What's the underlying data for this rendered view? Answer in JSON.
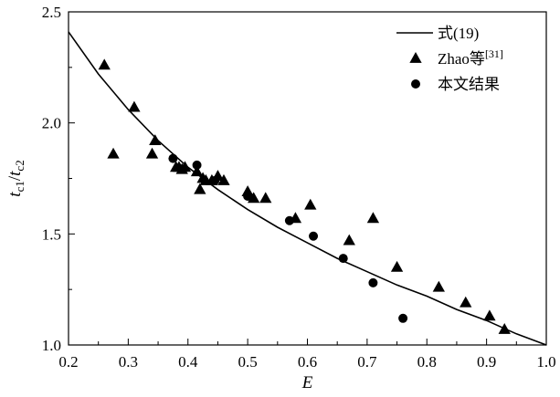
{
  "chart_data": {
    "type": "scatter",
    "xlabel": "E",
    "ylabel": {
      "t1": "t",
      "s1": "c1",
      "sep": "/",
      "t2": "t",
      "s2": "c2"
    },
    "xlim": [
      0.2,
      1.0
    ],
    "ylim": [
      1.0,
      2.5
    ],
    "x_ticks": [
      0.2,
      0.3,
      0.4,
      0.5,
      0.6,
      0.7,
      0.8,
      0.9,
      1.0
    ],
    "x_tick_labels": [
      "0.2",
      "0.3",
      "0.4",
      "0.5",
      "0.6",
      "0.7",
      "0.8",
      "0.9",
      "1.0"
    ],
    "y_ticks": [
      1.0,
      1.5,
      2.0,
      2.5
    ],
    "y_tick_labels": [
      "1.0",
      "1.5",
      "2.0",
      "2.5"
    ],
    "grid": false,
    "legend_position": "top-right",
    "series": [
      {
        "name": "式(19)",
        "type": "line",
        "color": "#000000",
        "x": [
          0.2,
          0.25,
          0.3,
          0.35,
          0.4,
          0.45,
          0.5,
          0.55,
          0.6,
          0.65,
          0.7,
          0.75,
          0.8,
          0.85,
          0.9,
          0.95,
          1.0
        ],
        "y": [
          2.41,
          2.22,
          2.06,
          1.92,
          1.8,
          1.7,
          1.61,
          1.53,
          1.46,
          1.39,
          1.33,
          1.27,
          1.22,
          1.16,
          1.11,
          1.05,
          1.0
        ]
      },
      {
        "name": "Zhao等",
        "name_sup": "[31]",
        "type": "scatter",
        "marker": "triangle",
        "color": "#000000",
        "x": [
          0.26,
          0.275,
          0.31,
          0.34,
          0.345,
          0.38,
          0.385,
          0.39,
          0.395,
          0.415,
          0.42,
          0.425,
          0.43,
          0.44,
          0.45,
          0.46,
          0.5,
          0.51,
          0.53,
          0.58,
          0.605,
          0.67,
          0.71,
          0.75,
          0.82,
          0.865,
          0.905,
          0.93
        ],
        "y": [
          2.26,
          1.86,
          2.07,
          1.86,
          1.92,
          1.8,
          1.8,
          1.79,
          1.8,
          1.78,
          1.7,
          1.75,
          1.74,
          1.74,
          1.76,
          1.74,
          1.69,
          1.66,
          1.66,
          1.57,
          1.63,
          1.47,
          1.57,
          1.35,
          1.26,
          1.19,
          1.13,
          1.07
        ]
      },
      {
        "name": "本文结果",
        "type": "scatter",
        "marker": "circle",
        "color": "#000000",
        "x": [
          0.375,
          0.415,
          0.445,
          0.5,
          0.57,
          0.61,
          0.66,
          0.71,
          0.76
        ],
        "y": [
          1.84,
          1.81,
          1.74,
          1.67,
          1.56,
          1.49,
          1.39,
          1.28,
          1.12
        ]
      }
    ]
  }
}
